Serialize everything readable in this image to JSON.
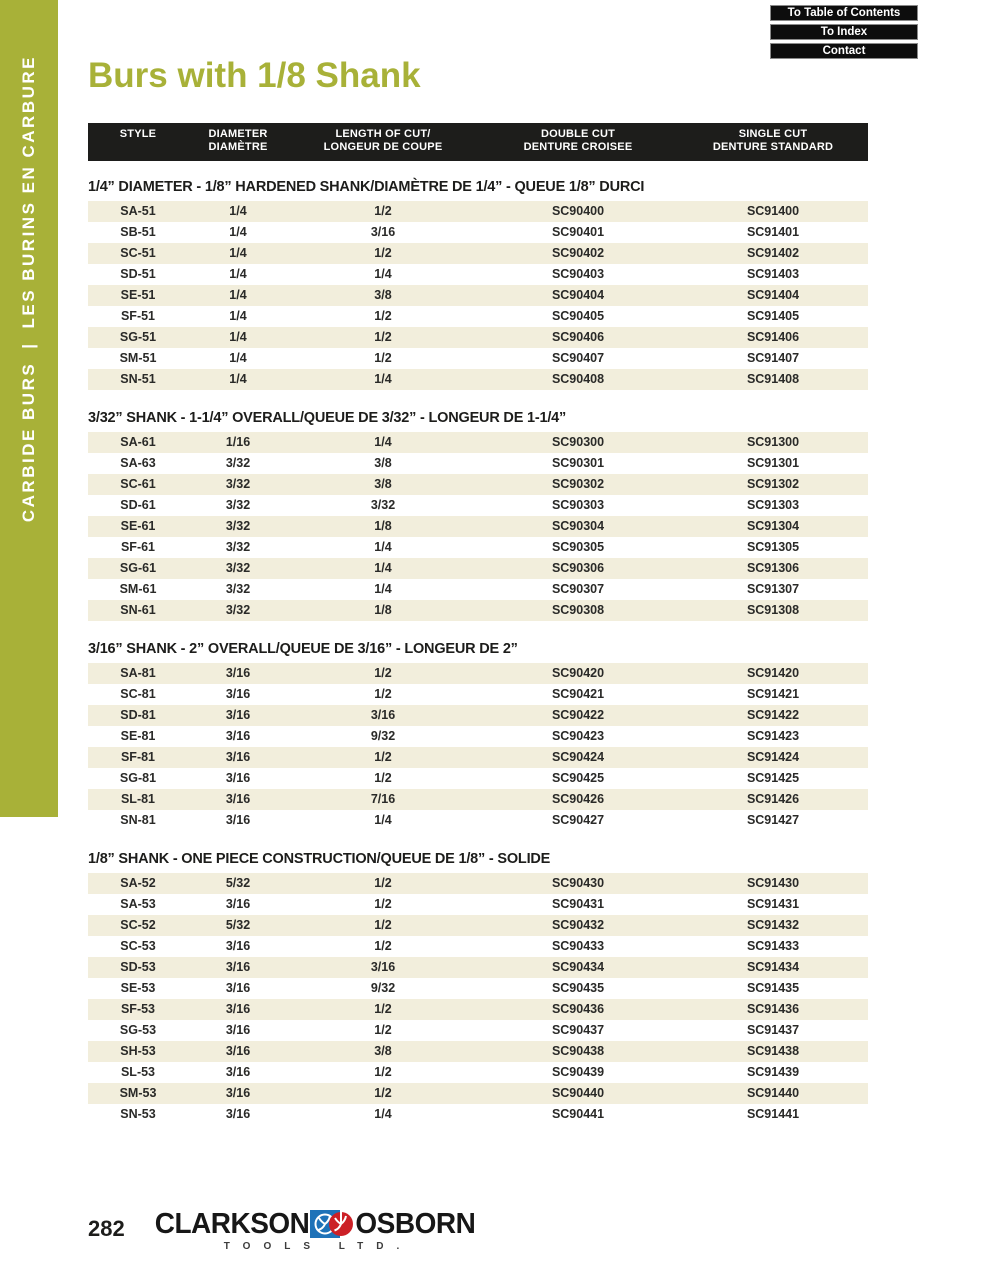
{
  "page": {
    "title": "Burs with 1/8 Shank",
    "number": "282"
  },
  "colors": {
    "accent_olive": "#a8b138",
    "row_stripe": "#f2eedc",
    "header_bar_black": "#1d1d1b",
    "logo_blue": "#1e72b8",
    "logo_red": "#cc2026"
  },
  "nav": {
    "buttons": [
      "To Table of Contents",
      "To Index",
      "Contact"
    ]
  },
  "sidebar": {
    "text_en": "CARBIDE BURS",
    "separator": "|",
    "text_fr": "LES BURINS EN CARBURE"
  },
  "table": {
    "headers": [
      {
        "line1": "STYLE",
        "line2": ""
      },
      {
        "line1": "DIAMETER",
        "line2": "DIAMÈTRE"
      },
      {
        "line1": "LENGTH OF CUT/",
        "line2": "LONGEUR DE COUPE"
      },
      {
        "line1": "DOUBLE CUT",
        "line2": "DENTURE CROISEE"
      },
      {
        "line1": "SINGLE CUT",
        "line2": "DENTURE STANDARD"
      }
    ],
    "sections": [
      {
        "heading": "1/4” DIAMETER - 1/8” HARDENED SHANK/DIAMÈTRE DE 1/4” - QUEUE 1/8” DURCI",
        "rows": [
          [
            "SA-51",
            "1/4",
            "1/2",
            "SC90400",
            "SC91400"
          ],
          [
            "SB-51",
            "1/4",
            "3/16",
            "SC90401",
            "SC91401"
          ],
          [
            "SC-51",
            "1/4",
            "1/2",
            "SC90402",
            "SC91402"
          ],
          [
            "SD-51",
            "1/4",
            "1/4",
            "SC90403",
            "SC91403"
          ],
          [
            "SE-51",
            "1/4",
            "3/8",
            "SC90404",
            "SC91404"
          ],
          [
            "SF-51",
            "1/4",
            "1/2",
            "SC90405",
            "SC91405"
          ],
          [
            "SG-51",
            "1/4",
            "1/2",
            "SC90406",
            "SC91406"
          ],
          [
            "SM-51",
            "1/4",
            "1/2",
            "SC90407",
            "SC91407"
          ],
          [
            "SN-51",
            "1/4",
            "1/4",
            "SC90408",
            "SC91408"
          ]
        ]
      },
      {
        "heading": "3/32” SHANK - 1-1/4” OVERALL/QUEUE DE 3/32” - LONGEUR DE 1-1/4”",
        "rows": [
          [
            "SA-61",
            "1/16",
            "1/4",
            "SC90300",
            "SC91300"
          ],
          [
            "SA-63",
            "3/32",
            "3/8",
            "SC90301",
            "SC91301"
          ],
          [
            "SC-61",
            "3/32",
            "3/8",
            "SC90302",
            "SC91302"
          ],
          [
            "SD-61",
            "3/32",
            "3/32",
            "SC90303",
            "SC91303"
          ],
          [
            "SE-61",
            "3/32",
            "1/8",
            "SC90304",
            "SC91304"
          ],
          [
            "SF-61",
            "3/32",
            "1/4",
            "SC90305",
            "SC91305"
          ],
          [
            "SG-61",
            "3/32",
            "1/4",
            "SC90306",
            "SC91306"
          ],
          [
            "SM-61",
            "3/32",
            "1/4",
            "SC90307",
            "SC91307"
          ],
          [
            "SN-61",
            "3/32",
            "1/8",
            "SC90308",
            "SC91308"
          ]
        ]
      },
      {
        "heading": "3/16” SHANK - 2” OVERALL/QUEUE DE 3/16” - LONGEUR DE 2”",
        "rows": [
          [
            "SA-81",
            "3/16",
            "1/2",
            "SC90420",
            "SC91420"
          ],
          [
            "SC-81",
            "3/16",
            "1/2",
            "SC90421",
            "SC91421"
          ],
          [
            "SD-81",
            "3/16",
            "3/16",
            "SC90422",
            "SC91422"
          ],
          [
            "SE-81",
            "3/16",
            "9/32",
            "SC90423",
            "SC91423"
          ],
          [
            "SF-81",
            "3/16",
            "1/2",
            "SC90424",
            "SC91424"
          ],
          [
            "SG-81",
            "3/16",
            "1/2",
            "SC90425",
            "SC91425"
          ],
          [
            "SL-81",
            "3/16",
            "7/16",
            "SC90426",
            "SC91426"
          ],
          [
            "SN-81",
            "3/16",
            "1/4",
            "SC90427",
            "SC91427"
          ]
        ]
      },
      {
        "heading": "1/8” SHANK - ONE PIECE CONSTRUCTION/QUEUE DE 1/8” - SOLIDE",
        "rows": [
          [
            "SA-52",
            "5/32",
            "1/2",
            "SC90430",
            "SC91430"
          ],
          [
            "SA-53",
            "3/16",
            "1/2",
            "SC90431",
            "SC91431"
          ],
          [
            "SC-52",
            "5/32",
            "1/2",
            "SC90432",
            "SC91432"
          ],
          [
            "SC-53",
            "3/16",
            "1/2",
            "SC90433",
            "SC91433"
          ],
          [
            "SD-53",
            "3/16",
            "3/16",
            "SC90434",
            "SC91434"
          ],
          [
            "SE-53",
            "3/16",
            "9/32",
            "SC90435",
            "SC91435"
          ],
          [
            "SF-53",
            "3/16",
            "1/2",
            "SC90436",
            "SC91436"
          ],
          [
            "SG-53",
            "3/16",
            "1/2",
            "SC90437",
            "SC91437"
          ],
          [
            "SH-53",
            "3/16",
            "3/8",
            "SC90438",
            "SC91438"
          ],
          [
            "SL-53",
            "3/16",
            "1/2",
            "SC90439",
            "SC91439"
          ],
          [
            "SM-53",
            "3/16",
            "1/2",
            "SC90440",
            "SC91440"
          ],
          [
            "SN-53",
            "3/16",
            "1/4",
            "SC90441",
            "SC91441"
          ]
        ]
      }
    ]
  },
  "footer": {
    "page_number": "282",
    "logo_word_left": "CLARKSON",
    "logo_word_right": "OSBORN",
    "logo_sub": "TOOLS LTD."
  }
}
